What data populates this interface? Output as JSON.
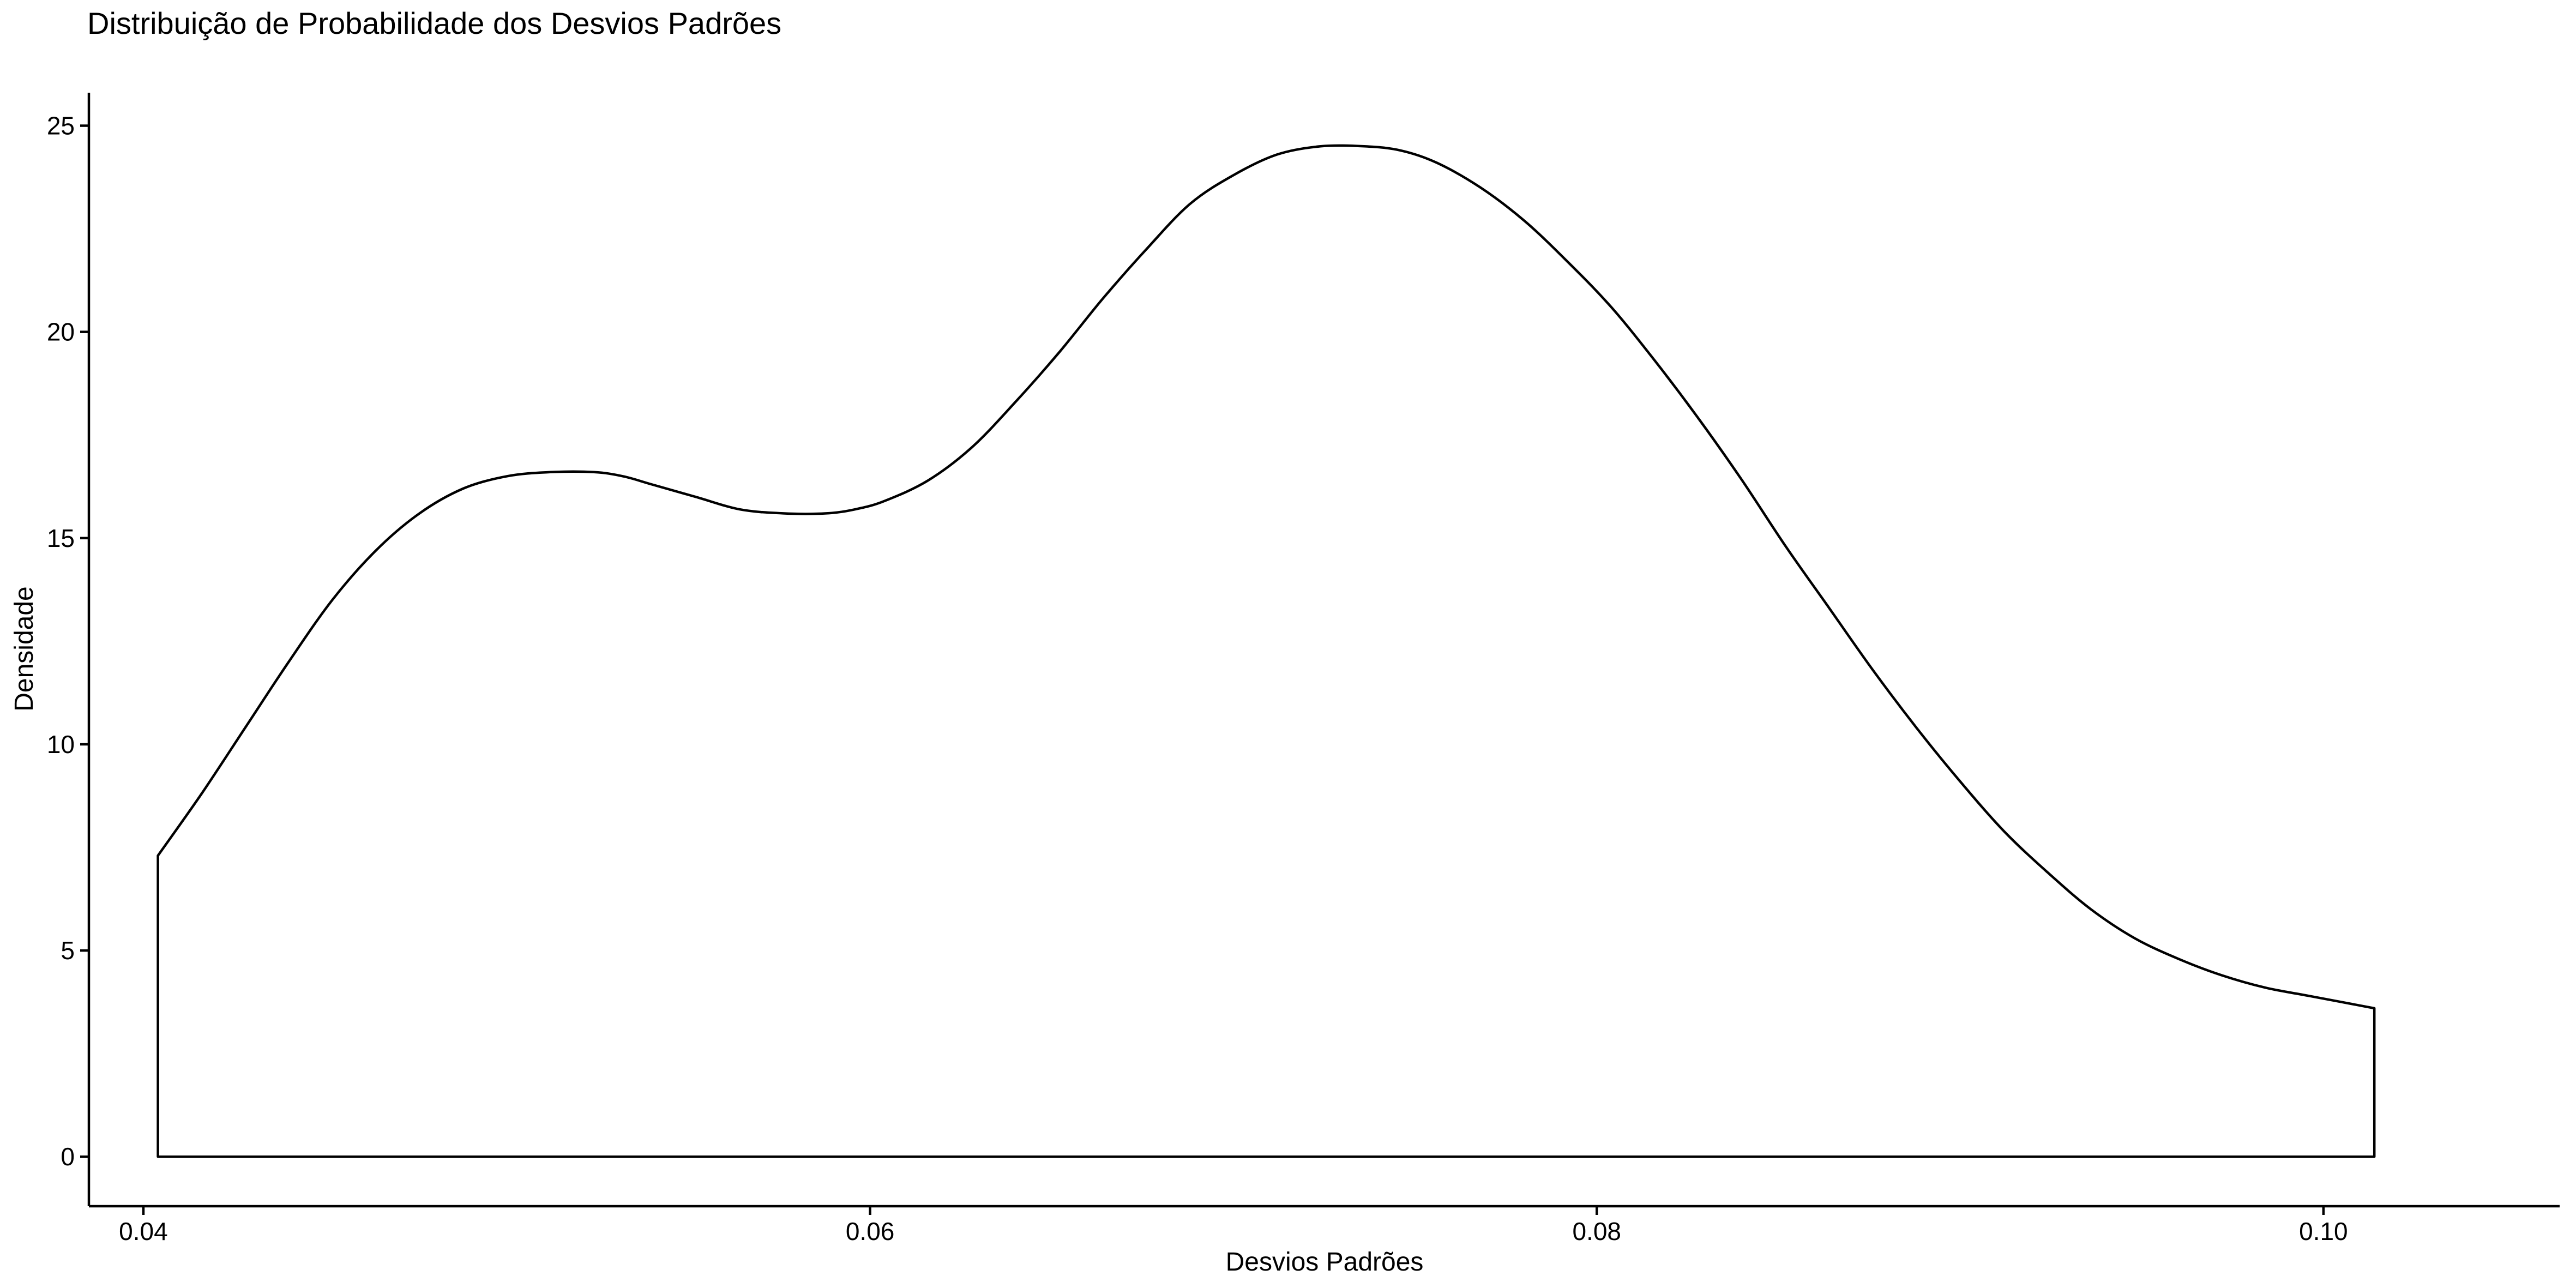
{
  "chart_data": {
    "type": "area",
    "title": "Distribuição de Probabilidade dos Desvios Padrões",
    "xlabel": "Desvios Padrões",
    "ylabel": "Densidade",
    "xlim": [
      0.0385,
      0.1065
    ],
    "ylim": [
      -1.2,
      25.8
    ],
    "x_ticks": [
      {
        "value": 0.04,
        "label": "0.04"
      },
      {
        "value": 0.06,
        "label": "0.06"
      },
      {
        "value": 0.08,
        "label": "0.08"
      },
      {
        "value": 0.1,
        "label": "0.10"
      }
    ],
    "y_ticks": [
      {
        "value": 0,
        "label": "0"
      },
      {
        "value": 5,
        "label": "5"
      },
      {
        "value": 10,
        "label": "10"
      },
      {
        "value": 15,
        "label": "15"
      },
      {
        "value": 20,
        "label": "20"
      },
      {
        "value": 25,
        "label": "25"
      }
    ],
    "grid": false,
    "legend": "none",
    "line_color": "#000000",
    "fill_color": "#ffffff",
    "series": [
      {
        "x": [
          0.0404,
          0.0416,
          0.0428,
          0.044,
          0.0452,
          0.0464,
          0.0476,
          0.0488,
          0.05,
          0.0512,
          0.0524,
          0.0532,
          0.054,
          0.0552,
          0.0564,
          0.0576,
          0.0588,
          0.0596,
          0.0604,
          0.0616,
          0.0628,
          0.064,
          0.0652,
          0.0664,
          0.0676,
          0.0688,
          0.07,
          0.0712,
          0.0724,
          0.0736,
          0.0746,
          0.0756,
          0.0768,
          0.078,
          0.0792,
          0.0804,
          0.0816,
          0.0828,
          0.084,
          0.0852,
          0.0864,
          0.0876,
          0.0888,
          0.09,
          0.0912,
          0.0924,
          0.0936,
          0.0948,
          0.096,
          0.0972,
          0.0984,
          0.0996,
          0.1014
        ],
        "y": [
          7.3,
          8.8,
          10.4,
          12.0,
          13.5,
          14.7,
          15.6,
          16.2,
          16.5,
          16.6,
          16.6,
          16.5,
          16.3,
          16.0,
          15.7,
          15.6,
          15.6,
          15.7,
          15.9,
          16.4,
          17.2,
          18.3,
          19.5,
          20.8,
          22.0,
          23.1,
          23.8,
          24.3,
          24.5,
          24.5,
          24.4,
          24.1,
          23.5,
          22.7,
          21.7,
          20.6,
          19.3,
          17.9,
          16.4,
          14.8,
          13.3,
          11.8,
          10.4,
          9.1,
          7.9,
          6.9,
          6.0,
          5.3,
          4.8,
          4.4,
          4.1,
          3.9,
          3.6
        ]
      }
    ]
  }
}
